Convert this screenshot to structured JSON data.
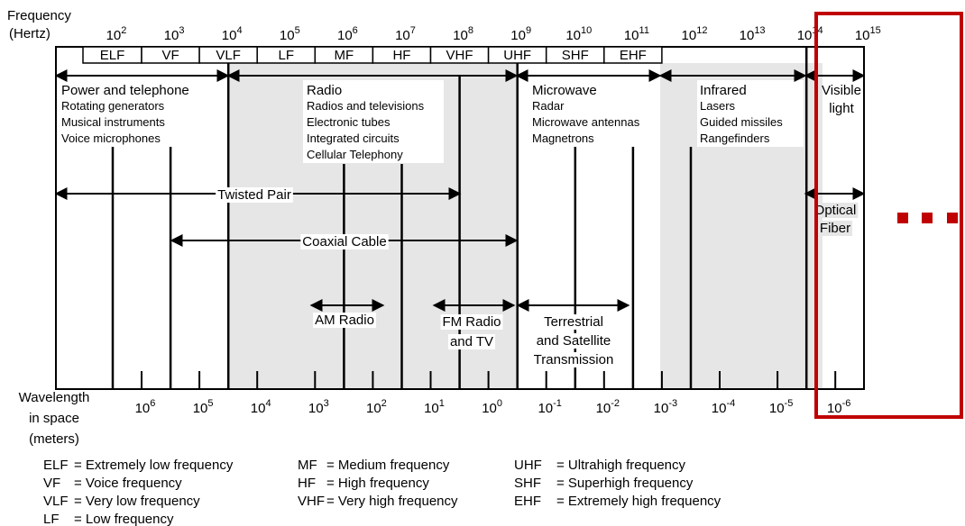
{
  "axis_labels": {
    "frequency": [
      "Frequency",
      "(Hertz)"
    ],
    "wavelength": [
      "Wavelength",
      "in space",
      "(meters)"
    ]
  },
  "frequency_ticks": [
    {
      "base": "10",
      "exponent": "2"
    },
    {
      "base": "10",
      "exponent": "3"
    },
    {
      "base": "10",
      "exponent": "4"
    },
    {
      "base": "10",
      "exponent": "5"
    },
    {
      "base": "10",
      "exponent": "6"
    },
    {
      "base": "10",
      "exponent": "7"
    },
    {
      "base": "10",
      "exponent": "8"
    },
    {
      "base": "10",
      "exponent": "9"
    },
    {
      "base": "10",
      "exponent": "10"
    },
    {
      "base": "10",
      "exponent": "11"
    },
    {
      "base": "10",
      "exponent": "12"
    },
    {
      "base": "10",
      "exponent": "13"
    },
    {
      "base": "10",
      "exponent": "14"
    },
    {
      "base": "10",
      "exponent": "15"
    }
  ],
  "wavelength_ticks": [
    {
      "base": "10",
      "exponent": "6"
    },
    {
      "base": "10",
      "exponent": "5"
    },
    {
      "base": "10",
      "exponent": "4"
    },
    {
      "base": "10",
      "exponent": "3"
    },
    {
      "base": "10",
      "exponent": "2"
    },
    {
      "base": "10",
      "exponent": "1"
    },
    {
      "base": "10",
      "exponent": "0"
    },
    {
      "base": "10",
      "exponent": "-1"
    },
    {
      "base": "10",
      "exponent": "-2"
    },
    {
      "base": "10",
      "exponent": "-3"
    },
    {
      "base": "10",
      "exponent": "-4"
    },
    {
      "base": "10",
      "exponent": "-5"
    },
    {
      "base": "10",
      "exponent": "-6"
    }
  ],
  "bands": [
    "ELF",
    "VF",
    "VLF",
    "LF",
    "MF",
    "HF",
    "VHF",
    "UHF",
    "SHF",
    "EHF"
  ],
  "regions": [
    {
      "title": "Power and telephone",
      "items": [
        "Rotating generators",
        "Musical instruments",
        "Voice microphones"
      ]
    },
    {
      "title": "Radio",
      "items": [
        "Radios and televisions",
        "Electronic tubes",
        "Integrated circuits",
        "Cellular Telephony"
      ]
    },
    {
      "title": "Microwave",
      "items": [
        "Radar",
        "Microwave antennas",
        "Magnetrons"
      ]
    },
    {
      "title": "Infrared",
      "items": [
        "Lasers",
        "Guided missiles",
        "Rangefinders"
      ]
    },
    {
      "title": "Visible",
      "items": [
        "light"
      ]
    }
  ],
  "media": [
    {
      "lines": [
        "Twisted Pair"
      ]
    },
    {
      "lines": [
        "Optical",
        "Fiber"
      ]
    },
    {
      "lines": [
        "Coaxial Cable"
      ]
    },
    {
      "lines": [
        "AM Radio"
      ]
    },
    {
      "lines": [
        "FM Radio",
        "and TV"
      ]
    },
    {
      "lines": [
        "Terrestrial",
        "and Satellite",
        "Transmission"
      ]
    }
  ],
  "legend": [
    {
      "abbr": "ELF",
      "definition": "= Extremely low frequency"
    },
    {
      "abbr": "VF",
      "definition": "= Voice frequency"
    },
    {
      "abbr": "VLF",
      "definition": "= Very low frequency"
    },
    {
      "abbr": "LF",
      "definition": "= Low frequency"
    },
    {
      "abbr": "MF",
      "definition": "= Medium frequency"
    },
    {
      "abbr": "HF",
      "definition": "= High frequency"
    },
    {
      "abbr": "VHF",
      "definition": "= Very high frequency"
    },
    {
      "abbr": "UHF",
      "definition": "= Ultrahigh frequency"
    },
    {
      "abbr": "SHF",
      "definition": "= Superhigh frequency"
    },
    {
      "abbr": "EHF",
      "definition": "= Extremely high frequency"
    }
  ]
}
